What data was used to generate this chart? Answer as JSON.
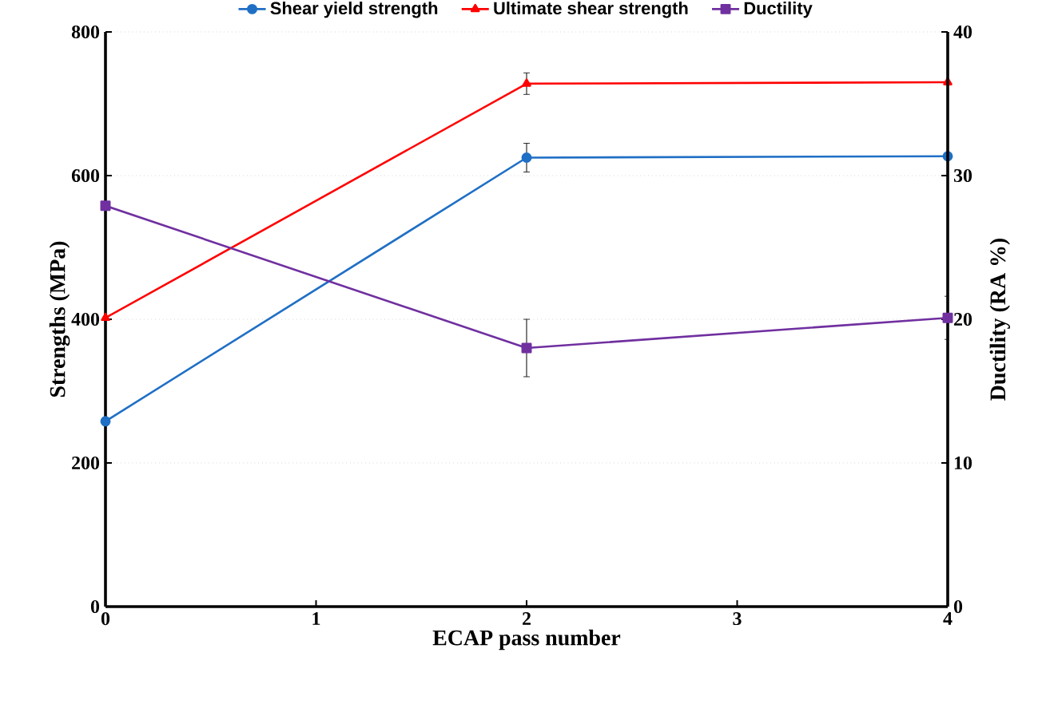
{
  "chart_data": {
    "type": "line",
    "xlabel": "ECAP pass number",
    "ylabel": "Strengths (MPa)",
    "y2label": "Ductility (RA %)",
    "x": [
      0,
      2,
      4
    ],
    "xlim": [
      0,
      4
    ],
    "xticks": [
      0,
      1,
      2,
      3,
      4
    ],
    "ylim": [
      0,
      800
    ],
    "yticks": [
      0,
      200,
      400,
      600,
      800
    ],
    "y2lim": [
      0,
      40
    ],
    "y2ticks": [
      0,
      10,
      20,
      30,
      40
    ],
    "grid": "y",
    "legend": "top",
    "line_style": "solid",
    "series": [
      {
        "name": "Shear yield strength",
        "color": "#1f6fc5",
        "marker": "circle",
        "values": [
          258,
          625,
          627
        ],
        "errors": [
          null,
          20,
          null
        ]
      },
      {
        "name": "Ultimate shear strength",
        "color": "#ff0000",
        "marker": "triangle",
        "values": [
          402,
          728,
          730
        ],
        "errors": [
          null,
          15,
          null
        ]
      },
      {
        "name": "Ductility",
        "color": "#7030a0",
        "marker": "square",
        "axis": "y2",
        "values": [
          27.9,
          18,
          20.1
        ],
        "errors": [
          null,
          2,
          1.5
        ]
      }
    ]
  }
}
